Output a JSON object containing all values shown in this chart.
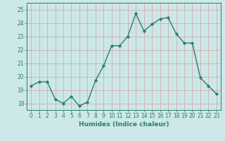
{
  "xlabel": "Humidex (Indice chaleur)",
  "ylabel": "",
  "x": [
    0,
    1,
    2,
    3,
    4,
    5,
    6,
    7,
    8,
    9,
    10,
    11,
    12,
    13,
    14,
    15,
    16,
    17,
    18,
    19,
    20,
    21,
    22,
    23
  ],
  "y": [
    19.3,
    19.6,
    19.6,
    18.3,
    18.0,
    18.5,
    17.8,
    18.1,
    19.7,
    20.8,
    22.3,
    22.3,
    23.0,
    24.7,
    23.4,
    23.9,
    24.3,
    24.4,
    23.2,
    22.5,
    22.5,
    19.9,
    19.3,
    18.7
  ],
  "line_color": "#2e7d6e",
  "marker": "D",
  "marker_size": 2.2,
  "bg_color": "#cce8e8",
  "grid_color": "#d4a0a0",
  "grid_color_minor": "#c8e0e0",
  "ylim": [
    17.5,
    25.5
  ],
  "yticks": [
    18,
    19,
    20,
    21,
    22,
    23,
    24,
    25
  ],
  "xlim": [
    -0.5,
    23.5
  ],
  "linewidth": 1.0,
  "tick_fontsize": 5.5,
  "xlabel_fontsize": 6.5,
  "tick_color": "#2e7d6e",
  "label_color": "#2e7d6e",
  "spine_color": "#2e7d6e"
}
